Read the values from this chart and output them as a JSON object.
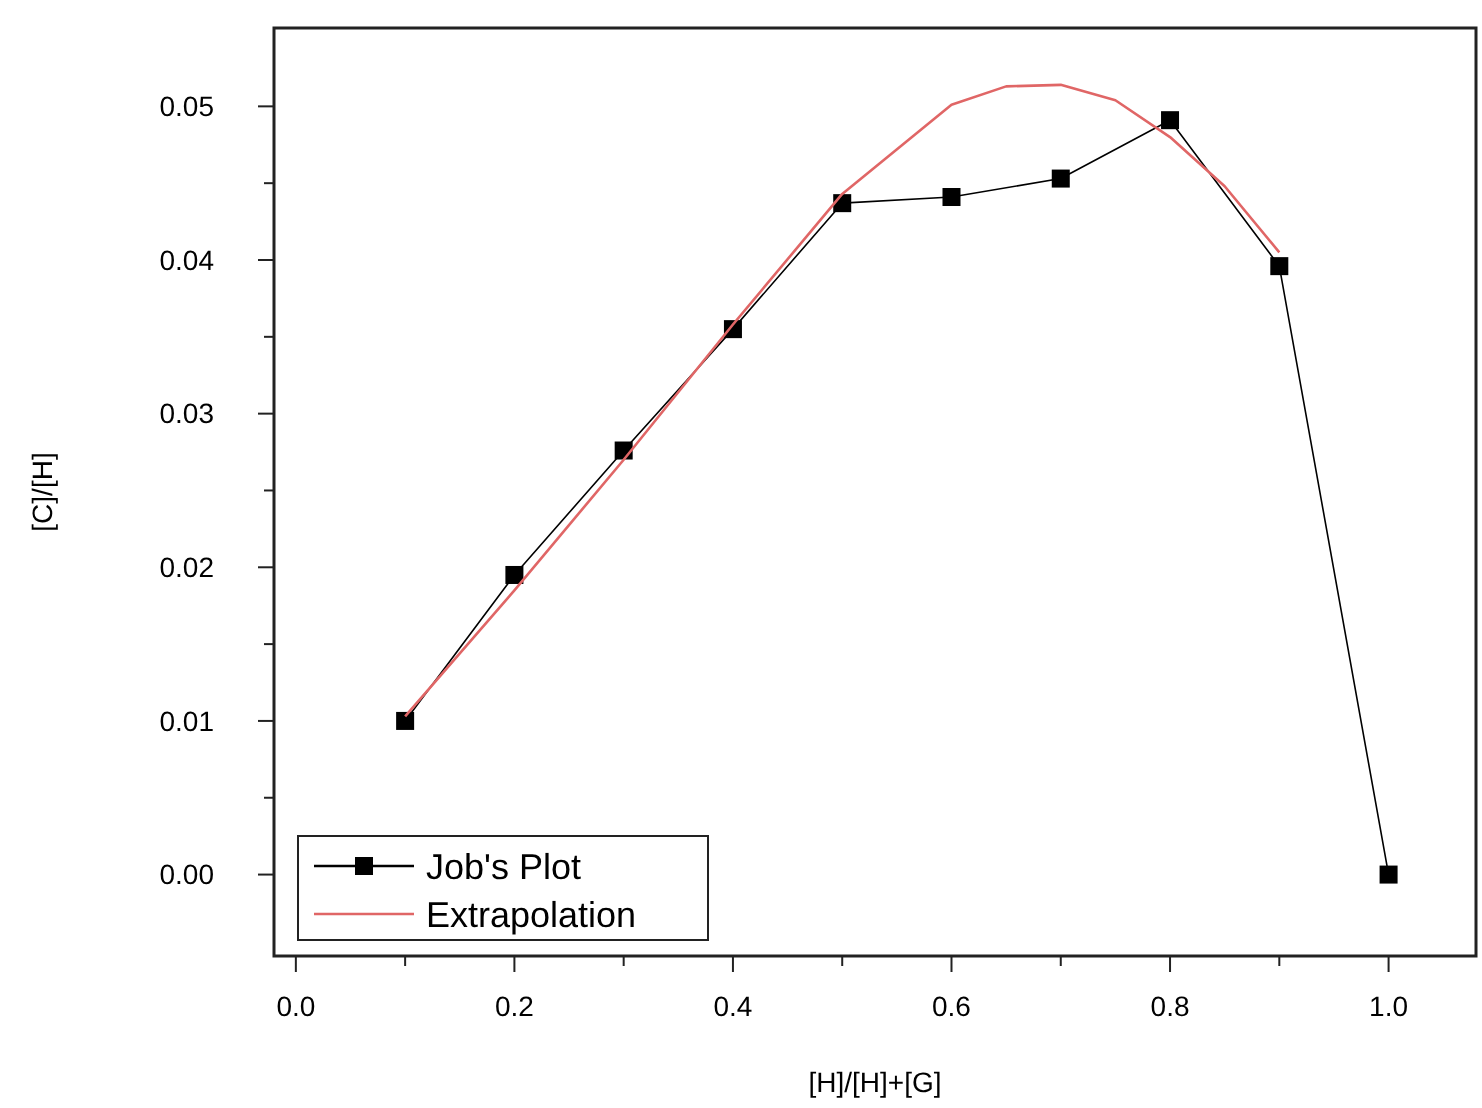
{
  "chart_data": {
    "type": "line",
    "xlabel": "[H]/[H]+[G]",
    "ylabel": "[C]/[H]",
    "xlim": [
      -0.02,
      1.08
    ],
    "ylim": [
      -0.0053,
      0.0551
    ],
    "xticks": [
      {
        "value": 0,
        "label": "0.0"
      },
      {
        "value": 0.1,
        "label": null
      },
      {
        "value": 0.2,
        "label": "0.2"
      },
      {
        "value": 0.3,
        "label": null
      },
      {
        "value": 0.4,
        "label": "0.4"
      },
      {
        "value": 0.5,
        "label": null
      },
      {
        "value": 0.6,
        "label": "0.6"
      },
      {
        "value": 0.7,
        "label": null
      },
      {
        "value": 0.8,
        "label": "0.8"
      },
      {
        "value": 0.9,
        "label": null
      },
      {
        "value": 1,
        "label": "1.0"
      }
    ],
    "yticks": [
      {
        "value": 0,
        "label": "0.00"
      },
      {
        "value": 0.005,
        "label": null
      },
      {
        "value": 0.01,
        "label": "0.01"
      },
      {
        "value": 0.015,
        "label": null
      },
      {
        "value": 0.02,
        "label": "0.02"
      },
      {
        "value": 0.025,
        "label": null
      },
      {
        "value": 0.03,
        "label": "0.03"
      },
      {
        "value": 0.035,
        "label": null
      },
      {
        "value": 0.04,
        "label": "0.04"
      },
      {
        "value": 0.045,
        "label": null
      },
      {
        "value": 0.05,
        "label": "0.05"
      }
    ],
    "legend": "bottom left",
    "grid": false,
    "series": [
      {
        "name": "Job's Plot",
        "color": "#000000",
        "marker": "square",
        "x": [
          0.1,
          0.2,
          0.3,
          0.4,
          0.5,
          0.6,
          0.7,
          0.8,
          0.9,
          1.0
        ],
        "values": [
          0.01,
          0.0195,
          0.0276,
          0.0355,
          0.0437,
          0.0441,
          0.0453,
          0.0491,
          0.0396,
          0.0
        ]
      },
      {
        "name": "Extrapolation",
        "color": "#e06666",
        "marker": "none",
        "x": [
          0.1,
          0.2,
          0.3,
          0.4,
          0.5,
          0.6,
          0.65,
          0.7,
          0.75,
          0.8,
          0.85,
          0.9
        ],
        "values": [
          0.0103,
          0.0185,
          0.027,
          0.0358,
          0.0443,
          0.0501,
          0.0513,
          0.0514,
          0.0504,
          0.048,
          0.0448,
          0.0405
        ]
      }
    ]
  }
}
